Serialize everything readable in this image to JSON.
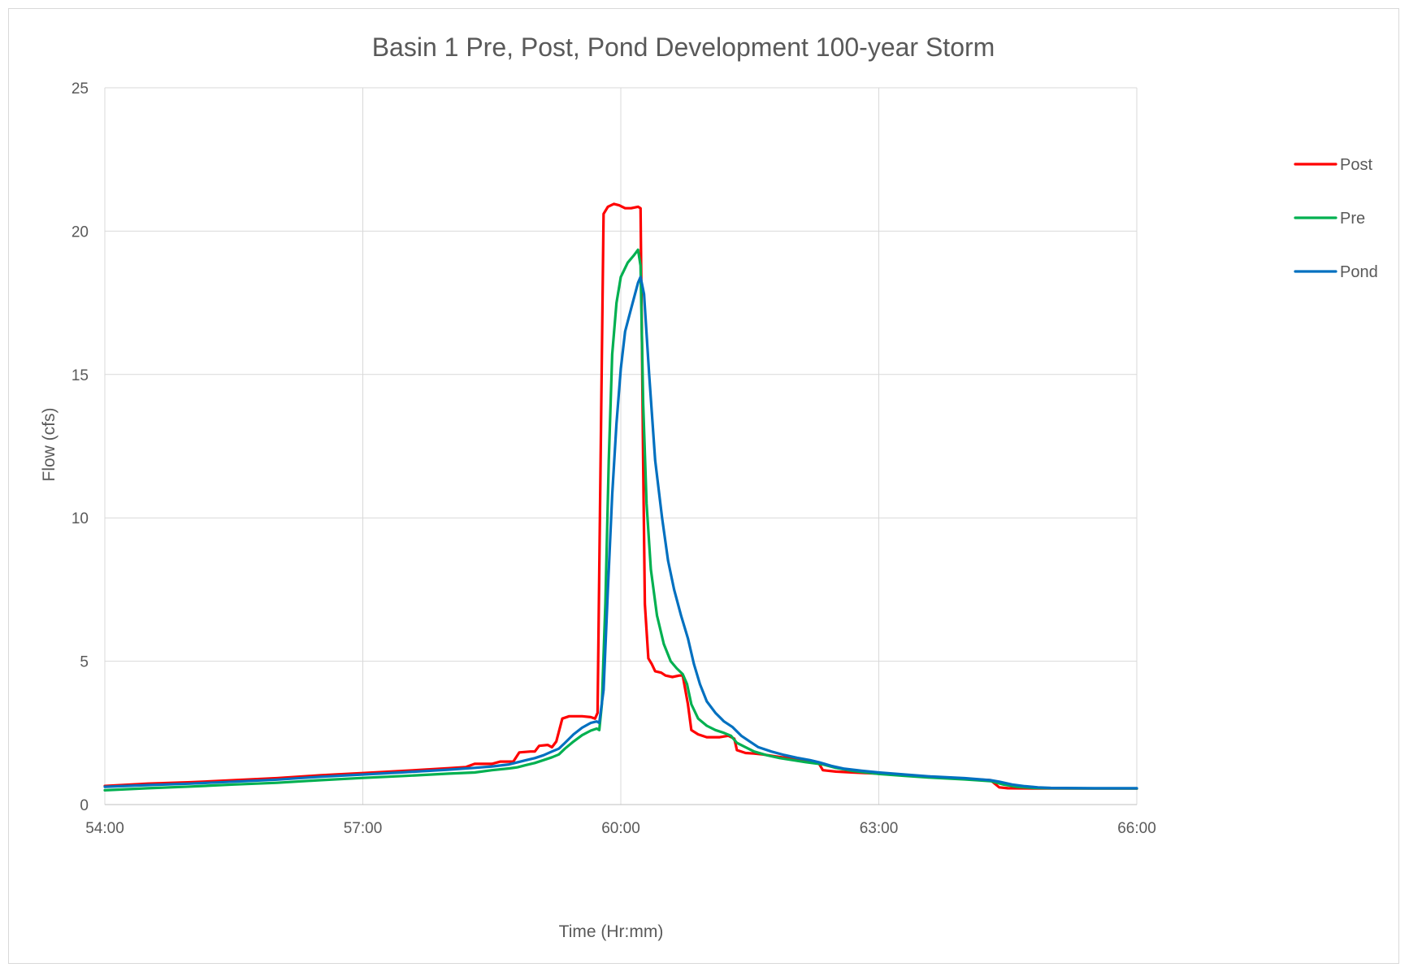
{
  "chart_data": {
    "type": "line",
    "title": "Basin 1 Pre, Post, Pond Development 100-year Storm",
    "xlabel": "Time (Hr:mm)",
    "ylabel": "Flow (cfs)",
    "xlim": [
      54,
      66
    ],
    "ylim": [
      0,
      25
    ],
    "x_ticks": [
      {
        "value": 54,
        "label": "54:00"
      },
      {
        "value": 57,
        "label": "57:00"
      },
      {
        "value": 60,
        "label": "60:00"
      },
      {
        "value": 63,
        "label": "63:00"
      },
      {
        "value": 66,
        "label": "66:00"
      }
    ],
    "y_ticks": [
      {
        "value": 0,
        "label": "0"
      },
      {
        "value": 5,
        "label": "5"
      },
      {
        "value": 10,
        "label": "10"
      },
      {
        "value": 15,
        "label": "15"
      },
      {
        "value": 20,
        "label": "20"
      },
      {
        "value": 25,
        "label": "25"
      }
    ],
    "grid": true,
    "legend_position": "right",
    "series": [
      {
        "name": "Post",
        "color": "#ff0000",
        "points": [
          [
            54.0,
            0.65
          ],
          [
            54.5,
            0.73
          ],
          [
            55.0,
            0.78
          ],
          [
            55.5,
            0.85
          ],
          [
            56.0,
            0.92
          ],
          [
            56.5,
            1.02
          ],
          [
            57.0,
            1.1
          ],
          [
            57.5,
            1.18
          ],
          [
            58.0,
            1.27
          ],
          [
            58.2,
            1.31
          ],
          [
            58.3,
            1.42
          ],
          [
            58.5,
            1.42
          ],
          [
            58.6,
            1.5
          ],
          [
            58.75,
            1.5
          ],
          [
            58.82,
            1.82
          ],
          [
            58.95,
            1.85
          ],
          [
            59.0,
            1.85
          ],
          [
            59.05,
            2.05
          ],
          [
            59.15,
            2.08
          ],
          [
            59.2,
            2.0
          ],
          [
            59.25,
            2.2
          ],
          [
            59.32,
            3.0
          ],
          [
            59.4,
            3.08
          ],
          [
            59.55,
            3.08
          ],
          [
            59.65,
            3.05
          ],
          [
            59.7,
            3.0
          ],
          [
            59.73,
            3.2
          ],
          [
            59.8,
            20.6
          ],
          [
            59.85,
            20.85
          ],
          [
            59.92,
            20.95
          ],
          [
            59.98,
            20.9
          ],
          [
            60.05,
            20.8
          ],
          [
            60.12,
            20.8
          ],
          [
            60.2,
            20.85
          ],
          [
            60.23,
            20.8
          ],
          [
            60.26,
            12.0
          ],
          [
            60.28,
            7.0
          ],
          [
            60.32,
            5.1
          ],
          [
            60.36,
            4.9
          ],
          [
            60.4,
            4.65
          ],
          [
            60.47,
            4.6
          ],
          [
            60.52,
            4.5
          ],
          [
            60.6,
            4.45
          ],
          [
            60.68,
            4.5
          ],
          [
            60.72,
            4.5
          ],
          [
            60.78,
            3.5
          ],
          [
            60.82,
            2.6
          ],
          [
            60.9,
            2.45
          ],
          [
            61.0,
            2.35
          ],
          [
            61.15,
            2.35
          ],
          [
            61.25,
            2.4
          ],
          [
            61.32,
            2.3
          ],
          [
            61.35,
            1.9
          ],
          [
            61.45,
            1.8
          ],
          [
            61.55,
            1.78
          ],
          [
            61.65,
            1.75
          ],
          [
            61.8,
            1.68
          ],
          [
            62.0,
            1.6
          ],
          [
            62.15,
            1.55
          ],
          [
            62.3,
            1.45
          ],
          [
            62.35,
            1.2
          ],
          [
            62.5,
            1.15
          ],
          [
            62.7,
            1.12
          ],
          [
            63.0,
            1.08
          ],
          [
            63.3,
            1.02
          ],
          [
            63.6,
            0.97
          ],
          [
            64.0,
            0.9
          ],
          [
            64.3,
            0.85
          ],
          [
            64.4,
            0.6
          ],
          [
            64.5,
            0.57
          ],
          [
            64.8,
            0.56
          ],
          [
            65.0,
            0.56
          ],
          [
            65.5,
            0.56
          ],
          [
            66.0,
            0.56
          ]
        ]
      },
      {
        "name": "Pre",
        "color": "#00b050",
        "points": [
          [
            54.0,
            0.5
          ],
          [
            54.5,
            0.57
          ],
          [
            55.0,
            0.63
          ],
          [
            55.5,
            0.7
          ],
          [
            56.0,
            0.76
          ],
          [
            56.5,
            0.85
          ],
          [
            57.0,
            0.93
          ],
          [
            57.5,
            1.0
          ],
          [
            58.0,
            1.08
          ],
          [
            58.3,
            1.12
          ],
          [
            58.5,
            1.2
          ],
          [
            58.7,
            1.26
          ],
          [
            58.8,
            1.3
          ],
          [
            58.9,
            1.38
          ],
          [
            59.0,
            1.45
          ],
          [
            59.1,
            1.55
          ],
          [
            59.2,
            1.65
          ],
          [
            59.28,
            1.75
          ],
          [
            59.35,
            1.95
          ],
          [
            59.45,
            2.2
          ],
          [
            59.55,
            2.42
          ],
          [
            59.65,
            2.58
          ],
          [
            59.72,
            2.65
          ],
          [
            59.75,
            2.6
          ],
          [
            59.78,
            3.5
          ],
          [
            59.82,
            7.0
          ],
          [
            59.86,
            12.0
          ],
          [
            59.9,
            15.7
          ],
          [
            59.95,
            17.5
          ],
          [
            60.0,
            18.4
          ],
          [
            60.08,
            18.9
          ],
          [
            60.15,
            19.15
          ],
          [
            60.2,
            19.35
          ],
          [
            60.23,
            18.8
          ],
          [
            60.26,
            14.0
          ],
          [
            60.3,
            10.5
          ],
          [
            60.35,
            8.2
          ],
          [
            60.42,
            6.6
          ],
          [
            60.5,
            5.6
          ],
          [
            60.58,
            5.0
          ],
          [
            60.65,
            4.75
          ],
          [
            60.72,
            4.55
          ],
          [
            60.77,
            4.2
          ],
          [
            60.82,
            3.5
          ],
          [
            60.9,
            3.0
          ],
          [
            61.0,
            2.75
          ],
          [
            61.1,
            2.6
          ],
          [
            61.2,
            2.5
          ],
          [
            61.28,
            2.4
          ],
          [
            61.35,
            2.15
          ],
          [
            61.45,
            2.0
          ],
          [
            61.55,
            1.85
          ],
          [
            61.7,
            1.72
          ],
          [
            61.85,
            1.62
          ],
          [
            62.0,
            1.55
          ],
          [
            62.15,
            1.48
          ],
          [
            62.35,
            1.4
          ],
          [
            62.5,
            1.28
          ],
          [
            62.7,
            1.17
          ],
          [
            63.0,
            1.07
          ],
          [
            63.3,
            1.0
          ],
          [
            63.6,
            0.94
          ],
          [
            64.0,
            0.88
          ],
          [
            64.3,
            0.82
          ],
          [
            64.45,
            0.7
          ],
          [
            64.6,
            0.62
          ],
          [
            64.8,
            0.58
          ],
          [
            65.0,
            0.57
          ],
          [
            65.5,
            0.56
          ],
          [
            66.0,
            0.56
          ]
        ]
      },
      {
        "name": "Pond",
        "color": "#0070c0",
        "points": [
          [
            54.0,
            0.62
          ],
          [
            54.5,
            0.68
          ],
          [
            55.0,
            0.73
          ],
          [
            55.5,
            0.8
          ],
          [
            56.0,
            0.87
          ],
          [
            56.5,
            0.97
          ],
          [
            57.0,
            1.05
          ],
          [
            57.5,
            1.13
          ],
          [
            58.0,
            1.22
          ],
          [
            58.3,
            1.28
          ],
          [
            58.5,
            1.33
          ],
          [
            58.7,
            1.4
          ],
          [
            58.9,
            1.55
          ],
          [
            59.0,
            1.62
          ],
          [
            59.1,
            1.72
          ],
          [
            59.2,
            1.85
          ],
          [
            59.28,
            1.95
          ],
          [
            59.35,
            2.15
          ],
          [
            59.45,
            2.45
          ],
          [
            59.55,
            2.68
          ],
          [
            59.65,
            2.85
          ],
          [
            59.72,
            2.9
          ],
          [
            59.75,
            2.85
          ],
          [
            59.8,
            4.0
          ],
          [
            59.85,
            7.5
          ],
          [
            59.9,
            10.8
          ],
          [
            59.95,
            13.3
          ],
          [
            60.0,
            15.2
          ],
          [
            60.05,
            16.5
          ],
          [
            60.12,
            17.3
          ],
          [
            60.2,
            18.2
          ],
          [
            60.23,
            18.4
          ],
          [
            60.27,
            17.8
          ],
          [
            60.33,
            15.0
          ],
          [
            60.4,
            12.0
          ],
          [
            60.48,
            10.0
          ],
          [
            60.55,
            8.5
          ],
          [
            60.62,
            7.5
          ],
          [
            60.7,
            6.6
          ],
          [
            60.78,
            5.8
          ],
          [
            60.85,
            4.9
          ],
          [
            60.92,
            4.2
          ],
          [
            61.0,
            3.6
          ],
          [
            61.1,
            3.2
          ],
          [
            61.2,
            2.9
          ],
          [
            61.3,
            2.7
          ],
          [
            61.4,
            2.4
          ],
          [
            61.5,
            2.2
          ],
          [
            61.6,
            2.0
          ],
          [
            61.75,
            1.85
          ],
          [
            61.9,
            1.73
          ],
          [
            62.05,
            1.63
          ],
          [
            62.2,
            1.55
          ],
          [
            62.3,
            1.48
          ],
          [
            62.45,
            1.35
          ],
          [
            62.6,
            1.25
          ],
          [
            62.8,
            1.18
          ],
          [
            63.0,
            1.12
          ],
          [
            63.3,
            1.05
          ],
          [
            63.6,
            0.98
          ],
          [
            64.0,
            0.92
          ],
          [
            64.3,
            0.85
          ],
          [
            64.4,
            0.8
          ],
          [
            64.55,
            0.7
          ],
          [
            64.7,
            0.64
          ],
          [
            64.85,
            0.6
          ],
          [
            65.0,
            0.58
          ],
          [
            65.5,
            0.57
          ],
          [
            66.0,
            0.57
          ]
        ]
      }
    ]
  }
}
